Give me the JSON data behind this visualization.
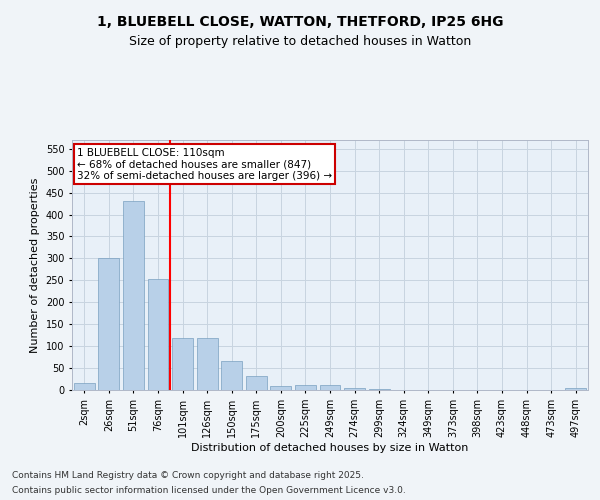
{
  "title_line1": "1, BLUEBELL CLOSE, WATTON, THETFORD, IP25 6HG",
  "title_line2": "Size of property relative to detached houses in Watton",
  "xlabel": "Distribution of detached houses by size in Watton",
  "ylabel": "Number of detached properties",
  "categories": [
    "2sqm",
    "26sqm",
    "51sqm",
    "76sqm",
    "101sqm",
    "126sqm",
    "150sqm",
    "175sqm",
    "200sqm",
    "225sqm",
    "249sqm",
    "274sqm",
    "299sqm",
    "324sqm",
    "349sqm",
    "373sqm",
    "398sqm",
    "423sqm",
    "448sqm",
    "473sqm",
    "497sqm"
  ],
  "values": [
    15,
    302,
    430,
    253,
    118,
    118,
    65,
    33,
    10,
    11,
    12,
    5,
    2,
    0,
    0,
    1,
    0,
    0,
    0,
    0,
    4
  ],
  "bar_color": "#b8d0e8",
  "bar_edge_color": "#7aa0c0",
  "grid_color": "#c8d4e0",
  "background_color": "#e8f0f8",
  "fig_background": "#f0f4f8",
  "red_line_index": 4,
  "annotation_text": "1 BLUEBELL CLOSE: 110sqm\n← 68% of detached houses are smaller (847)\n32% of semi-detached houses are larger (396) →",
  "annotation_box_facecolor": "#ffffff",
  "annotation_box_edgecolor": "#cc0000",
  "ylim": [
    0,
    570
  ],
  "yticks": [
    0,
    50,
    100,
    150,
    200,
    250,
    300,
    350,
    400,
    450,
    500,
    550
  ],
  "footer_line1": "Contains HM Land Registry data © Crown copyright and database right 2025.",
  "footer_line2": "Contains public sector information licensed under the Open Government Licence v3.0.",
  "title_fontsize": 10,
  "subtitle_fontsize": 9,
  "axis_label_fontsize": 8,
  "tick_fontsize": 7,
  "annotation_fontsize": 7.5,
  "footer_fontsize": 6.5
}
